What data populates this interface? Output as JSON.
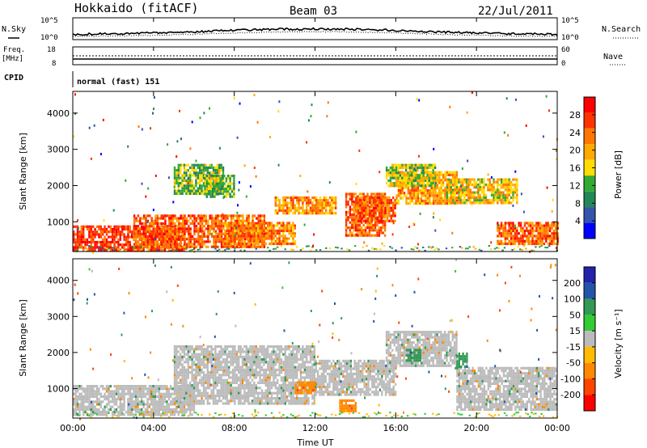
{
  "header": {
    "title": "Hokkaido (fitACF)",
    "beam": "Beam 03",
    "date": "22/Jul/2011"
  },
  "top_panels": {
    "nsky_label": "N.Sky",
    "nsearch_label": "N.Search",
    "freq_label": "Freq.",
    "freq_unit": "[MHz]",
    "nave_label": "Nave",
    "cpid_label": "CPID",
    "cpid_value": "normal (fast) 151",
    "noise_ticks": [
      "10^5",
      "10^0"
    ],
    "freq_ticks": [
      "18",
      "8"
    ],
    "nave_ticks": [
      "60",
      "0"
    ]
  },
  "power_panel": {
    "ylabel": "Slant Range [km]",
    "cbar_label": "Power [dB]",
    "cbar_ticks": [
      "28",
      "24",
      "20",
      "16",
      "12",
      "8",
      "4"
    ],
    "colors": [
      "#ff0000",
      "#ff3300",
      "#ff7700",
      "#ffaa00",
      "#ffdd00",
      "#33aa33",
      "#228855",
      "#3355aa",
      "#0000ff"
    ]
  },
  "velocity_panel": {
    "ylabel": "Slant Range [km]",
    "cbar_label": "Velocity [m s⁻¹]",
    "cbar_ticks": [
      "200",
      "100",
      "50",
      "15",
      "-15",
      "-50",
      "-100",
      "-200"
    ],
    "colors": [
      "#2222aa",
      "#2255aa",
      "#339955",
      "#33cc33",
      "#bbbbbb",
      "#ffbb00",
      "#ff8800",
      "#ff4400",
      "#ff0000"
    ]
  },
  "x_axis": {
    "label": "Time UT",
    "ticks": [
      "00:00",
      "04:00",
      "08:00",
      "12:00",
      "16:00",
      "20:00",
      "00:00"
    ]
  },
  "chart_data": {
    "type": "heatmap",
    "title": "Hokkaido (fitACF)",
    "subtitle": "Beam 03",
    "date": "22/Jul/2011",
    "xlabel": "Time UT",
    "ylabel": "Slant Range [km]",
    "x_range_hours": [
      0,
      24
    ],
    "y_range_km": [
      180,
      4600
    ],
    "y_ticks": [
      1000,
      2000,
      3000,
      4000
    ],
    "power": {
      "colorbar_label": "Power [dB]",
      "colorbar_ticks": [
        4,
        8,
        12,
        16,
        20,
        24,
        28
      ],
      "regions": [
        {
          "t0": 0.0,
          "t1": 5.5,
          "r0": 250,
          "r1": 900,
          "level": 30
        },
        {
          "t0": 3.0,
          "t1": 9.5,
          "r0": 300,
          "r1": 1200,
          "level": 28
        },
        {
          "t0": 7.5,
          "t1": 11.0,
          "r0": 400,
          "r1": 1000,
          "level": 26
        },
        {
          "t0": 10.0,
          "t1": 13.0,
          "r0": 1200,
          "r1": 1700,
          "level": 25
        },
        {
          "t0": 13.5,
          "t1": 15.5,
          "r0": 600,
          "r1": 1800,
          "level": 27
        },
        {
          "t0": 14.0,
          "t1": 16.0,
          "r0": 1000,
          "r1": 1700,
          "level": 28
        },
        {
          "t0": 16.0,
          "t1": 19.0,
          "r0": 1500,
          "r1": 2400,
          "level": 24
        },
        {
          "t0": 18.5,
          "t1": 22.0,
          "r0": 1500,
          "r1": 2200,
          "level": 22
        },
        {
          "t0": 21.0,
          "t1": 24.0,
          "r0": 400,
          "r1": 1000,
          "level": 28
        },
        {
          "t0": 5.0,
          "t1": 7.5,
          "r0": 1800,
          "r1": 2600,
          "level": 18
        },
        {
          "t0": 6.5,
          "t1": 8.0,
          "r0": 1700,
          "r1": 2300,
          "level": 18
        },
        {
          "t0": 15.5,
          "t1": 18.0,
          "r0": 2000,
          "r1": 2600,
          "level": 20
        }
      ]
    },
    "velocity": {
      "colorbar_label": "Velocity [m s⁻¹]",
      "colorbar_ticks": [
        -200,
        -100,
        -50,
        -15,
        15,
        50,
        100,
        200
      ],
      "regions": [
        {
          "t0": 0.0,
          "t1": 6.0,
          "r0": 300,
          "r1": 1100,
          "v": 0
        },
        {
          "t0": 5.0,
          "t1": 12.0,
          "r0": 600,
          "r1": 2200,
          "v": 0
        },
        {
          "t0": 12.0,
          "t1": 16.0,
          "r0": 800,
          "r1": 1800,
          "v": 0
        },
        {
          "t0": 15.5,
          "t1": 19.0,
          "r0": 1600,
          "r1": 2600,
          "v": 0
        },
        {
          "t0": 19.0,
          "t1": 24.0,
          "r0": 400,
          "r1": 1600,
          "v": 0
        },
        {
          "t0": 11.0,
          "t1": 12.0,
          "r0": 900,
          "r1": 1200,
          "v": -60
        },
        {
          "t0": 13.2,
          "t1": 14.0,
          "r0": 400,
          "r1": 700,
          "v": -60
        },
        {
          "t0": 16.5,
          "t1": 17.2,
          "r0": 1800,
          "r1": 2100,
          "v": 60
        },
        {
          "t0": 19.0,
          "t1": 19.5,
          "r0": 1600,
          "r1": 2000,
          "v": 60
        }
      ]
    }
  }
}
